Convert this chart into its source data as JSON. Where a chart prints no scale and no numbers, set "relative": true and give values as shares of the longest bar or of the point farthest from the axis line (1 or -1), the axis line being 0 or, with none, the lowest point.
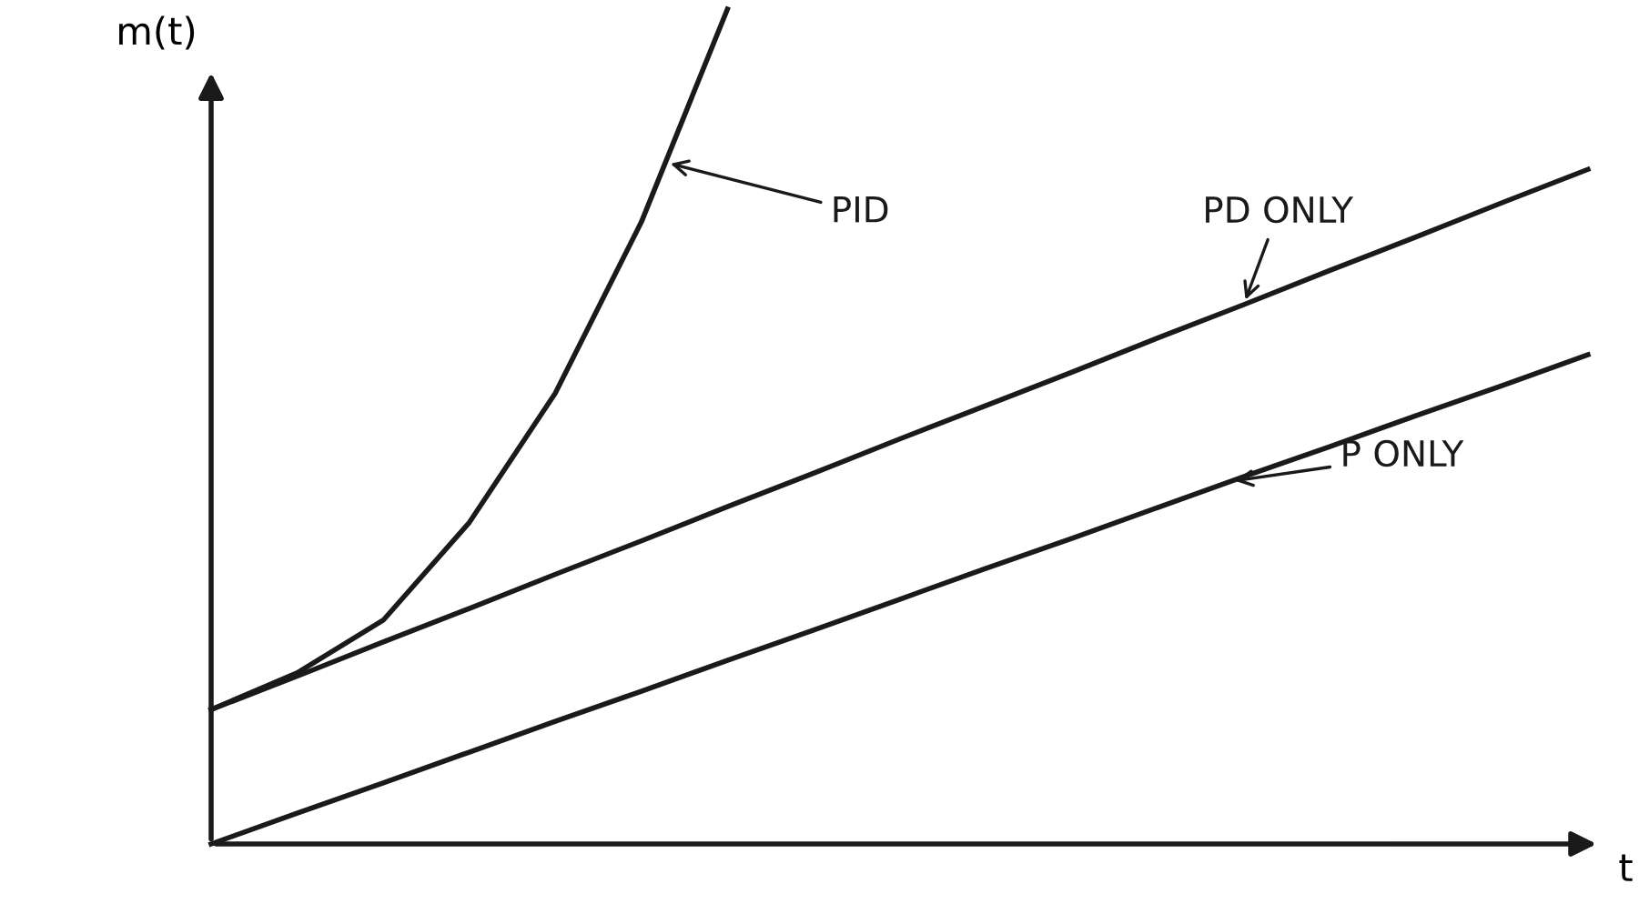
{
  "chart_data": {
    "type": "line",
    "relative": true,
    "xlabel": "t",
    "ylabel": "m(t)",
    "marker": "none",
    "line_style": "solid",
    "categories": [
      null,
      null,
      null,
      null,
      null,
      null,
      null,
      null,
      null,
      null,
      null,
      null,
      null,
      null,
      null,
      null,
      null
    ],
    "series": [
      {
        "name": "PID",
        "color": "#1a1a1a",
        "values": [
          0.161,
          0.205,
          0.268,
          0.385,
          0.54,
          0.745,
          1.0,
          null,
          null,
          null,
          null,
          null,
          null,
          null,
          null,
          null,
          null
        ]
      },
      {
        "name": "PD ONLY",
        "color": "#1a1a1a",
        "values": [
          0.161,
          0.201,
          0.242,
          0.282,
          0.323,
          0.363,
          0.404,
          0.444,
          0.485,
          0.525,
          0.565,
          0.606,
          0.646,
          0.687,
          0.727,
          0.768,
          0.808
        ]
      },
      {
        "name": "P ONLY",
        "color": "#1a1a1a",
        "values": [
          0,
          0.037,
          0.073,
          0.11,
          0.147,
          0.183,
          0.22,
          0.256,
          0.293,
          0.33,
          0.366,
          0.403,
          0.44,
          0.476,
          0.513,
          0.549,
          0.586
        ]
      }
    ]
  }
}
